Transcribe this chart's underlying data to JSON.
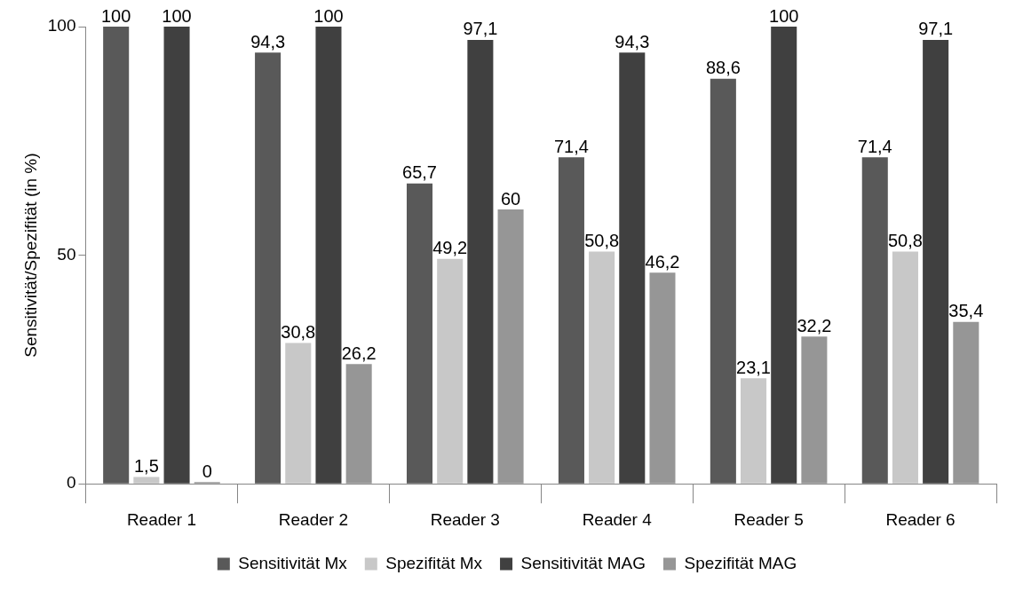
{
  "chart_data": {
    "type": "bar",
    "ylabel": "Sensitivität/Spezifität (in %)",
    "categories": [
      "Reader 1",
      "Reader 2",
      "Reader 3",
      "Reader 4",
      "Reader 5",
      "Reader 6"
    ],
    "series": [
      {
        "name": "Sensitivität Mx",
        "color": "#595959",
        "values": [
          100,
          94.3,
          65.7,
          71.4,
          88.6,
          71.4
        ],
        "value_labels": [
          "100",
          "94,3",
          "65,7",
          "71,4",
          "88,6",
          "71,4"
        ]
      },
      {
        "name": "Spezifität Mx",
        "color": "#c8c8c8",
        "values": [
          1.5,
          30.8,
          49.2,
          50.8,
          23.1,
          50.8
        ],
        "value_labels": [
          "1,5",
          "30,8",
          "49,2",
          "50,8",
          "23,1",
          "50,8"
        ]
      },
      {
        "name": "Sensitivität MAG",
        "color": "#404040",
        "values": [
          100,
          100,
          97.1,
          94.3,
          100,
          97.1
        ],
        "value_labels": [
          "100",
          "100",
          "97,1",
          "94,3",
          "100",
          "97,1"
        ]
      },
      {
        "name": "Spezifität MAG",
        "color": "#969696",
        "values": [
          0,
          26.2,
          60,
          46.2,
          32.2,
          35.4
        ],
        "value_labels": [
          "0",
          "26,2",
          "60",
          "46,2",
          "32,2",
          "35,4"
        ]
      }
    ],
    "ylim": [
      0,
      100
    ],
    "yticks": [
      0,
      50,
      100
    ],
    "grid": false,
    "legend": "bottom"
  }
}
